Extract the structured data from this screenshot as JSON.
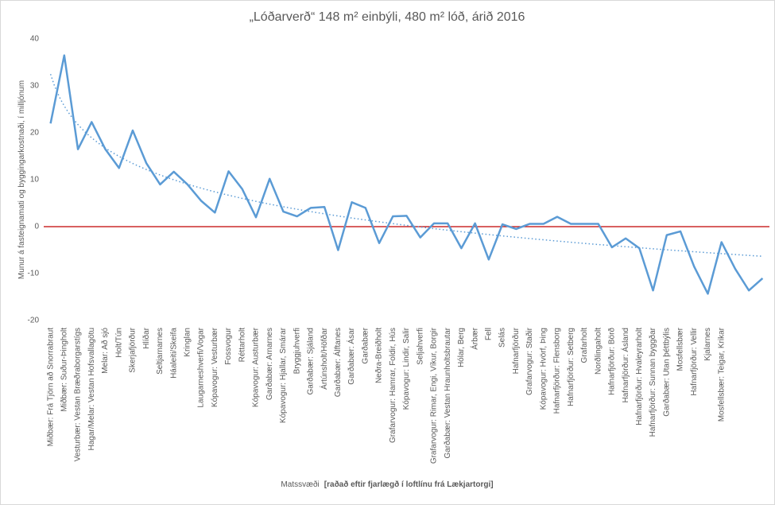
{
  "chart_data": {
    "type": "line",
    "title": "„Lóðarverð“ 148 m² einbýli, 480 m² lóð, árið 2016",
    "y_label": "Munur á fasteignamati og byggingarkostnaði, í milljónum",
    "x_label": "Matssvæði",
    "x_label_note": "[raðað eftir fjarlægð í loftlínu frá Lækjartorgi]",
    "categories": [
      "Miðbær: Frá Tjörn að Snorrabraut",
      "Miðbær: Suður-Þingholt",
      "Vesturbær: Vestan Bræðraborgarstígs",
      "Hagar/Melar: Vestan Hofsvallagötu",
      "Melar: Að sjó",
      "Holt/Tún",
      "Skerjafjörður",
      "Hlíðar",
      "Seltjarnarnes",
      "Háaleiti/Skeifa",
      "Kringlan",
      "Laugarneshverfi/Vogar",
      "Kópavogur: Vesturbær",
      "Fossvogur",
      "Réttarholt",
      "Kópavogur: Austurbær",
      "Garðabær: Arnarnes",
      "Kópavogur: Hjallar, Smárar",
      "Bryggjuhverfi",
      "Garðabær: Sjáland",
      "Ártúnsholt/Höfðar",
      "Garðabær: Álftanes",
      "Garðabær: Ásar",
      "Garðabær",
      "Neðra-Breiðholt",
      "Grafarvogur: Hamrar, Foldir, Hús",
      "Kópavogur: Lindir, Salir",
      "Seljahverfi",
      "Grafarvogur: Rimar, Engi, Víkur, Borgir",
      "Garðabær: Vestan Hraunholtsbrautar",
      "Hólar, Berg",
      "Árbær",
      "Fell",
      "Selás",
      "Hafnarfjörður",
      "Grafarvogur: Staðir",
      "Kópavogur: Hvörf, Þing",
      "Hafnarfjörður: Flensborg",
      "Hafnarfjörður: Setberg",
      "Grafarholt",
      "Norðlingaholt",
      "Hafnarfjörður: Börð",
      "Hafnarfjörður: Ásland",
      "Hafnarfjörður: Hvaleyrarholt",
      "Hafnarfjörður: Sunnan byggðar",
      "Garðabær: Utan þéttbýlis",
      "Mosfellsbær",
      "Hafnarfjörður: Vellir",
      "Kjalarnes",
      "Mosfellsbær: Teigar, Krikar",
      null,
      null,
      null
    ],
    "series": [
      {
        "name": "Munur",
        "color": "#5b9bd5",
        "values": [
          22,
          36.5,
          16.5,
          22.3,
          16.5,
          12.5,
          20.5,
          13.5,
          9,
          11.7,
          9,
          5.5,
          3,
          11.8,
          8,
          2,
          10.2,
          3.2,
          2.2,
          4,
          4.2,
          -5,
          5.2,
          4,
          -3.5,
          2.2,
          2.3,
          -2.3,
          0.7,
          0.7,
          -4.6,
          0.7,
          -7,
          0.5,
          -0.5,
          0.6,
          0.6,
          2.1,
          0.6,
          0.6,
          0.6,
          -4.4,
          -2.5,
          -4.6,
          -13.6,
          -1.8,
          -1,
          -8.5,
          -14.3,
          -3.3,
          -9,
          -13.6,
          -11
        ]
      }
    ],
    "trendline": "logarithmic",
    "zero_line_color": "#c00000",
    "ylim": [
      -20,
      40
    ],
    "yticks": [
      -20,
      -10,
      0,
      10,
      20,
      30,
      40
    ],
    "grid": false
  }
}
